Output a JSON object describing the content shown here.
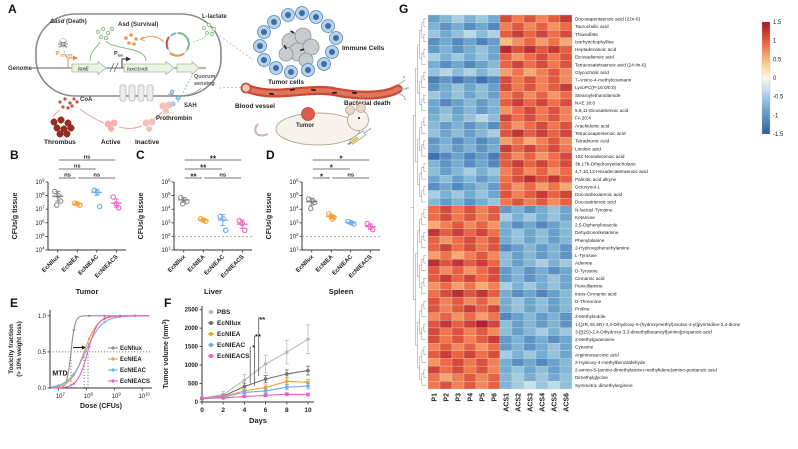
{
  "panel_labels": {
    "A": "A",
    "B": "B",
    "C": "C",
    "D": "D",
    "E": "E",
    "F": "F",
    "G": "G"
  },
  "diagram": {
    "death_gene": "Δasd",
    "death_suffix": " (Death)",
    "survival_gene": "Asd",
    "survival_suffix": " (Survival)",
    "lactate": "L-lactate",
    "genome": "Genome",
    "promoter1_main": "P",
    "promoter1_sub": "J23108",
    "promoter2_main": "P",
    "promoter2_sub": "lux",
    "gene1": "luxE",
    "gene2": "luxCDAB",
    "quorum1": "Quorum",
    "quorum2": "sensing",
    "coa": "CoA",
    "sah": "SAH",
    "thrombus": "Thrombus",
    "active": "Active",
    "inactive": "Inactive",
    "prothrombin": "Prothrombin",
    "immune_cells": "Immune Cells",
    "tumor_cells": "Tumor cells",
    "blood_vessel": "Blood vessel",
    "bacterial_death": "Bacterial death",
    "tumor": "Tumor"
  },
  "chart_data": [
    {
      "id": "B",
      "type": "scatter",
      "tissue": "Tumor",
      "ylabel": "CFUs/g tissue",
      "tick_exponents": [
        4,
        5,
        6,
        7,
        8,
        9
      ],
      "groups": [
        "EcNllux",
        "EcNIEA",
        "EcNIEAC",
        "EcNIEACS"
      ],
      "colors": [
        "#8f8f8f",
        "#f5a033",
        "#6aaef0",
        "#ee5fc0"
      ],
      "points_log10": [
        [
          8.3,
          8.0,
          7.6,
          7.3
        ],
        [
          7.45,
          7.4,
          7.3
        ],
        [
          8.4,
          8.25,
          7.2
        ],
        [
          7.9,
          7.4,
          7.1
        ]
      ],
      "mean_log10": [
        7.95,
        7.38,
        8.24,
        7.45
      ],
      "err_log10": [
        0.35,
        0.1,
        0.22,
        0.3
      ],
      "detection_limit_log10": null,
      "comparisons": [
        {
          "a": 1,
          "b": 2,
          "label": "ns",
          "level": 1
        },
        {
          "a": 2,
          "b": 4,
          "label": "ns",
          "level": 1
        },
        {
          "a": 1,
          "b": 3,
          "label": "ns",
          "level": 2
        },
        {
          "a": 1,
          "b": 4,
          "label": "ns",
          "level": 3
        }
      ]
    },
    {
      "id": "C",
      "type": "scatter",
      "tissue": "Liver",
      "ylabel": "CFUs/g tissue",
      "tick_exponents": [
        1,
        2,
        3,
        4,
        5,
        6
      ],
      "groups": [
        "EcNllux",
        "EcNIEA",
        "EcNIEAC",
        "EcNIEACS"
      ],
      "colors": [
        "#8f8f8f",
        "#f5a033",
        "#6aaef0",
        "#ee5fc0"
      ],
      "points_log10": [
        [
          4.85,
          4.7,
          4.55,
          4.4
        ],
        [
          3.3,
          3.2,
          3.12
        ],
        [
          3.45,
          3.3,
          2.45
        ],
        [
          3.15,
          2.95,
          2.45
        ]
      ],
      "mean_log10": [
        4.68,
        3.2,
        3.2,
        2.9
      ],
      "err_log10": [
        0.18,
        0.09,
        0.4,
        0.3
      ],
      "detection_limit_log10": 2,
      "comparisons": [
        {
          "a": 1,
          "b": 2,
          "label": "**",
          "level": 1
        },
        {
          "a": 2,
          "b": 4,
          "label": "ns",
          "level": 1
        },
        {
          "a": 1,
          "b": 3,
          "label": "**",
          "level": 2
        },
        {
          "a": 1,
          "b": 4,
          "label": "**",
          "level": 3
        }
      ]
    },
    {
      "id": "D",
      "type": "scatter",
      "tissue": "Spleen",
      "ylabel": "CFUs/g tissue",
      "tick_exponents": [
        1,
        2,
        3,
        4,
        5,
        6
      ],
      "groups": [
        "EcNllux",
        "EcNIEA",
        "EcNIEAC",
        "EcNIEACS"
      ],
      "colors": [
        "#8f8f8f",
        "#f5a033",
        "#6aaef0",
        "#ee5fc0"
      ],
      "points_log10": [
        [
          4.75,
          4.6,
          4.5,
          4.05
        ],
        [
          3.65,
          3.5,
          3.4,
          3.28
        ],
        [
          3.1,
          3.0,
          2.92
        ],
        [
          2.95,
          2.72,
          2.5
        ]
      ],
      "mean_log10": [
        4.55,
        3.45,
        3.0,
        2.72
      ],
      "err_log10": [
        0.25,
        0.14,
        0.08,
        0.2
      ],
      "detection_limit_log10": 2,
      "comparisons": [
        {
          "a": 1,
          "b": 2,
          "label": "*",
          "level": 1
        },
        {
          "a": 2,
          "b": 4,
          "label": "ns",
          "level": 1
        },
        {
          "a": 1,
          "b": 3,
          "label": "*",
          "level": 2
        },
        {
          "a": 1,
          "b": 4,
          "label": "*",
          "level": 3
        }
      ]
    },
    {
      "id": "E",
      "type": "line",
      "xlabel": "Dose (CFUs)",
      "ylabel_line1": "Toxicity fraction",
      "ylabel_line2": "(> 10% weight loss)",
      "x_tick_exponents": [
        7,
        8,
        9,
        10
      ],
      "y_tick_labels": [
        "0.0",
        "0.5",
        "1.0"
      ],
      "mtd_label": "MTD",
      "series": [
        {
          "name": "EcNllux",
          "color": "#8f8f8f",
          "ec50_log10": 7.45,
          "steepness": 14
        },
        {
          "name": "EcNIEA",
          "color": "#f5a033",
          "ec50_log10": 7.92,
          "steepness": 4.2
        },
        {
          "name": "EcNIEAC",
          "color": "#6aaef0",
          "ec50_log10": 7.97,
          "steepness": 3.4
        },
        {
          "name": "EcNIEACS",
          "color": "#ee5fc0",
          "ec50_log10": 8.05,
          "steepness": 5.5
        }
      ]
    },
    {
      "id": "F",
      "type": "line",
      "xlabel": "Days",
      "ylabel_main": "Tumor volume (mm",
      "ylabel_sup": "3",
      "ylabel_end": ")",
      "x_ticks": [
        0,
        2,
        4,
        6,
        8,
        10
      ],
      "y_ticks": [
        0,
        500,
        1000,
        1500,
        2000,
        2500
      ],
      "significance_labels": [
        "*",
        "**",
        "**"
      ],
      "series": [
        {
          "name": "PBS",
          "color": "#b9b9b9",
          "values": [
            100,
            200,
            590,
            1030,
            1350,
            1700
          ],
          "err": [
            40,
            80,
            160,
            240,
            320,
            390
          ]
        },
        {
          "name": "EcNllux",
          "color": "#6f6f6f",
          "values": [
            100,
            160,
            420,
            620,
            760,
            850
          ],
          "err": [
            30,
            40,
            90,
            100,
            110,
            120
          ]
        },
        {
          "name": "EcNIEA",
          "color": "#f5a033",
          "values": [
            100,
            150,
            300,
            390,
            560,
            530
          ],
          "err": [
            25,
            35,
            60,
            70,
            90,
            85
          ]
        },
        {
          "name": "EcNIEAC",
          "color": "#6aaef0",
          "values": [
            95,
            130,
            260,
            300,
            400,
            430
          ],
          "err": [
            20,
            30,
            50,
            60,
            70,
            75
          ]
        },
        {
          "name": "EcNIEACS",
          "color": "#ee5fc0",
          "values": [
            95,
            110,
            150,
            180,
            210,
            200
          ],
          "err": [
            15,
            20,
            30,
            35,
            40,
            40
          ]
        }
      ]
    },
    {
      "id": "G",
      "type": "heatmap",
      "columns": [
        "P1",
        "P2",
        "P3",
        "P4",
        "P5",
        "P6",
        "ACS1",
        "ACS2",
        "ACS3",
        "ACS4",
        "ACS5",
        "ACS6"
      ],
      "colorbar_ticks": [
        "1.5",
        "1",
        "0.5",
        "0",
        "-0.5",
        "-1",
        "-1.5"
      ],
      "value_range": [
        -1.5,
        1.5
      ],
      "rows": [
        {
          "n": "Docosapentaenoic acid (22n-6)",
          "p": -0.7,
          "a": 1.0
        },
        {
          "n": "Taurocholic acid",
          "p": -0.9,
          "a": 0.8
        },
        {
          "n": "Thiosulfate",
          "p": -0.6,
          "a": 1.1
        },
        {
          "n": "Isorhynchophylline",
          "p": -1.0,
          "a": 0.7
        },
        {
          "n": "Heptadecanoic acid",
          "p": -0.8,
          "a": 1.2
        },
        {
          "n": "Eicosadienoic acid",
          "p": -0.7,
          "a": 0.9
        },
        {
          "n": "Tetracosatetraenoic acid (24:4n-6)",
          "p": -0.9,
          "a": 1.0
        },
        {
          "n": "Glycocholic acid",
          "p": -0.6,
          "a": 0.8
        },
        {
          "n": "7-Amino-4-methylcoumarin",
          "p": -1.1,
          "a": 0.9
        },
        {
          "n": "LysoPC(P-16:0/0:0)",
          "p": -0.8,
          "a": 1.0
        },
        {
          "n": "Stearoylethanolamide",
          "p": -0.7,
          "a": 0.8
        },
        {
          "n": "NAE 18:0",
          "p": -0.9,
          "a": 1.1
        },
        {
          "n": "5,8,11-Eicosatrienoic acid",
          "p": -0.8,
          "a": 0.9
        },
        {
          "n": "FA 20:4",
          "p": -0.6,
          "a": 1.0
        },
        {
          "n": "Arachidonic acid",
          "p": -0.9,
          "a": 0.9
        },
        {
          "n": "Tetracosapentenoic acid",
          "p": -0.7,
          "a": 1.1
        },
        {
          "n": "Tetrathionic Acid",
          "p": -1.0,
          "a": 0.8
        },
        {
          "n": "Linoleic acid",
          "p": -0.8,
          "a": 1.0
        },
        {
          "n": "10Z-Nonadecenoic acid",
          "p": -1.1,
          "a": 0.9
        },
        {
          "n": "3b,17b-Dihydroxyetiocholane",
          "p": -0.9,
          "a": 1.0
        },
        {
          "n": "4,7,10,13-Hexadecatetraenoic acid",
          "p": -0.7,
          "a": 0.9
        },
        {
          "n": "Palmitic acid alkyne",
          "p": -0.8,
          "a": 1.1
        },
        {
          "n": "Octoxynol-1",
          "p": -0.9,
          "a": 0.8
        },
        {
          "n": "Docosahexaenoic acid",
          "p": -0.7,
          "a": 1.0
        },
        {
          "n": "Docosatrienoic acid",
          "p": -0.8,
          "a": 0.9
        },
        {
          "n": "N-lactoyl-Tyrosine",
          "p": 0.9,
          "a": -0.8
        },
        {
          "n": "Ketamine",
          "p": 1.0,
          "a": -0.7
        },
        {
          "n": "2,5-Diphenyloxazole",
          "p": 0.8,
          "a": -0.9
        },
        {
          "n": "Dehydronorketamine",
          "p": 1.1,
          "a": -0.8
        },
        {
          "n": "Phenylalanine",
          "p": 0.9,
          "a": -0.7
        },
        {
          "n": "2-Hydroxyphenethylamine",
          "p": 1.0,
          "a": -0.9
        },
        {
          "n": "L-Tyrosine",
          "p": 0.8,
          "a": -0.8
        },
        {
          "n": "Adenine",
          "p": 1.1,
          "a": -0.7
        },
        {
          "n": "D-Tyrosine",
          "p": 0.9,
          "a": -0.9
        },
        {
          "n": "Cinnamic acid",
          "p": 1.0,
          "a": -0.8
        },
        {
          "n": "Penicillamine",
          "p": 0.8,
          "a": -0.7
        },
        {
          "n": "trans-Cinnamic acid",
          "p": 1.1,
          "a": -0.9
        },
        {
          "n": "D-Threonine",
          "p": 0.9,
          "a": -0.8
        },
        {
          "n": "Proline",
          "p": 1.0,
          "a": -0.7
        },
        {
          "n": "2-Methylindole",
          "p": 0.8,
          "a": -0.9
        },
        {
          "n": "1-[(2R,3S,5R)-3,4-Dihydroxy-5-(hydroxymethyl)oxolan-2-yl]pyrimidine-2,4-dione",
          "p": 1.2,
          "a": -0.8
        },
        {
          "n": "3-[[(2S)-2,4-Dihydroxy-3,3-dimethylbutanoyl]amino]propanoic acid",
          "p": 0.9,
          "a": -0.7
        },
        {
          "n": "2-Methylguanosine",
          "p": 1.0,
          "a": -0.9
        },
        {
          "n": "Cytosine",
          "p": 0.8,
          "a": -0.8
        },
        {
          "n": "Argininosuccinic acid",
          "p": 1.1,
          "a": -0.7
        },
        {
          "n": "2-Hydroxy-4-methylbenzaldehyde",
          "p": 0.9,
          "a": -0.9
        },
        {
          "n": "2-amino-5-(amino-dimethylamino-methylidene)amino-pentanoic acid",
          "p": 1.0,
          "a": -0.8
        },
        {
          "n": "Dimethylglycine",
          "p": 0.8,
          "a": -0.6
        },
        {
          "n": "Symmetric dimethylarginine",
          "p": 0.9,
          "a": -0.5
        }
      ]
    }
  ]
}
